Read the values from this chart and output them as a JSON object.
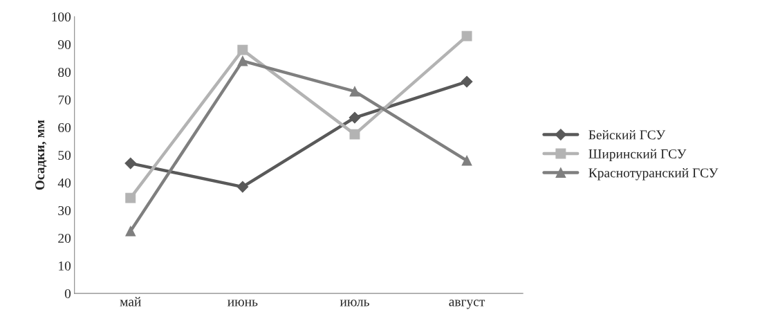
{
  "chart_data": {
    "type": "line",
    "ylabel": "Осадки, мм",
    "categories": [
      "май",
      "июнь",
      "июль",
      "август"
    ],
    "series": [
      {
        "name": "Бейский ГСУ",
        "color": "#595959",
        "marker": "diamond",
        "values": [
          47,
          38.5,
          63.5,
          76.5
        ]
      },
      {
        "name": "Ширинский ГСУ",
        "color": "#b3b3b3",
        "marker": "square",
        "values": [
          34.5,
          88,
          57.5,
          93
        ]
      },
      {
        "name": "Краснотуранский ГСУ",
        "color": "#7f7f7f",
        "marker": "triangle",
        "values": [
          22.5,
          84,
          73,
          48
        ]
      }
    ],
    "ylim": [
      0,
      100
    ],
    "yticks": [
      0,
      10,
      20,
      30,
      40,
      50,
      60,
      70,
      80,
      90,
      100
    ],
    "grid": false,
    "legend": "right",
    "line_style": "solid"
  }
}
